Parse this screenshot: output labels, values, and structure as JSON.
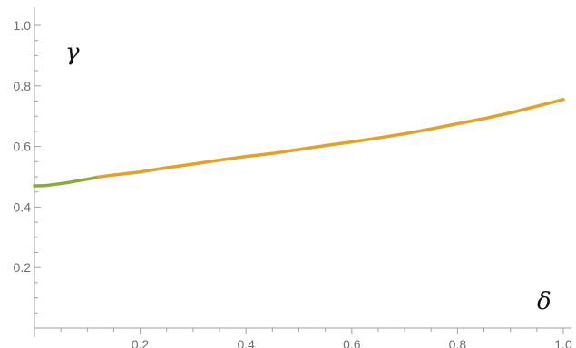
{
  "chart_data": {
    "type": "line",
    "xlabel": "δ",
    "ylabel": "γ",
    "xlim": [
      0,
      1
    ],
    "ylim": [
      0,
      1
    ],
    "x_ticks": [
      {
        "value": 0.2,
        "label": "0.2"
      },
      {
        "value": 0.4,
        "label": "0.4"
      },
      {
        "value": 0.6,
        "label": "0.6"
      },
      {
        "value": 0.8,
        "label": "0.8"
      },
      {
        "value": 1.0,
        "label": "1.0"
      }
    ],
    "y_ticks": [
      {
        "value": 0.2,
        "label": "0.2"
      },
      {
        "value": 0.4,
        "label": "0.4"
      },
      {
        "value": 0.6,
        "label": "0.6"
      },
      {
        "value": 0.8,
        "label": "0.8"
      },
      {
        "value": 1.0,
        "label": "1.0"
      }
    ],
    "grid": false,
    "series": [
      {
        "color": "#8aaa3a",
        "points": [
          [
            0.0,
            0.47
          ],
          [
            0.02,
            0.471
          ],
          [
            0.04,
            0.475
          ],
          [
            0.06,
            0.48
          ],
          [
            0.08,
            0.486
          ],
          [
            0.1,
            0.492
          ],
          [
            0.12,
            0.499
          ]
        ]
      },
      {
        "color": "#e2a12a",
        "points": [
          [
            0.12,
            0.499
          ],
          [
            0.15,
            0.506
          ],
          [
            0.2,
            0.516
          ],
          [
            0.25,
            0.53
          ],
          [
            0.3,
            0.542
          ],
          [
            0.35,
            0.555
          ],
          [
            0.4,
            0.567
          ],
          [
            0.45,
            0.577
          ],
          [
            0.5,
            0.59
          ],
          [
            0.55,
            0.603
          ],
          [
            0.6,
            0.615
          ],
          [
            0.65,
            0.628
          ],
          [
            0.7,
            0.642
          ],
          [
            0.75,
            0.658
          ],
          [
            0.8,
            0.675
          ],
          [
            0.85,
            0.692
          ],
          [
            0.9,
            0.711
          ],
          [
            0.95,
            0.733
          ],
          [
            1.0,
            0.755
          ]
        ]
      }
    ]
  }
}
